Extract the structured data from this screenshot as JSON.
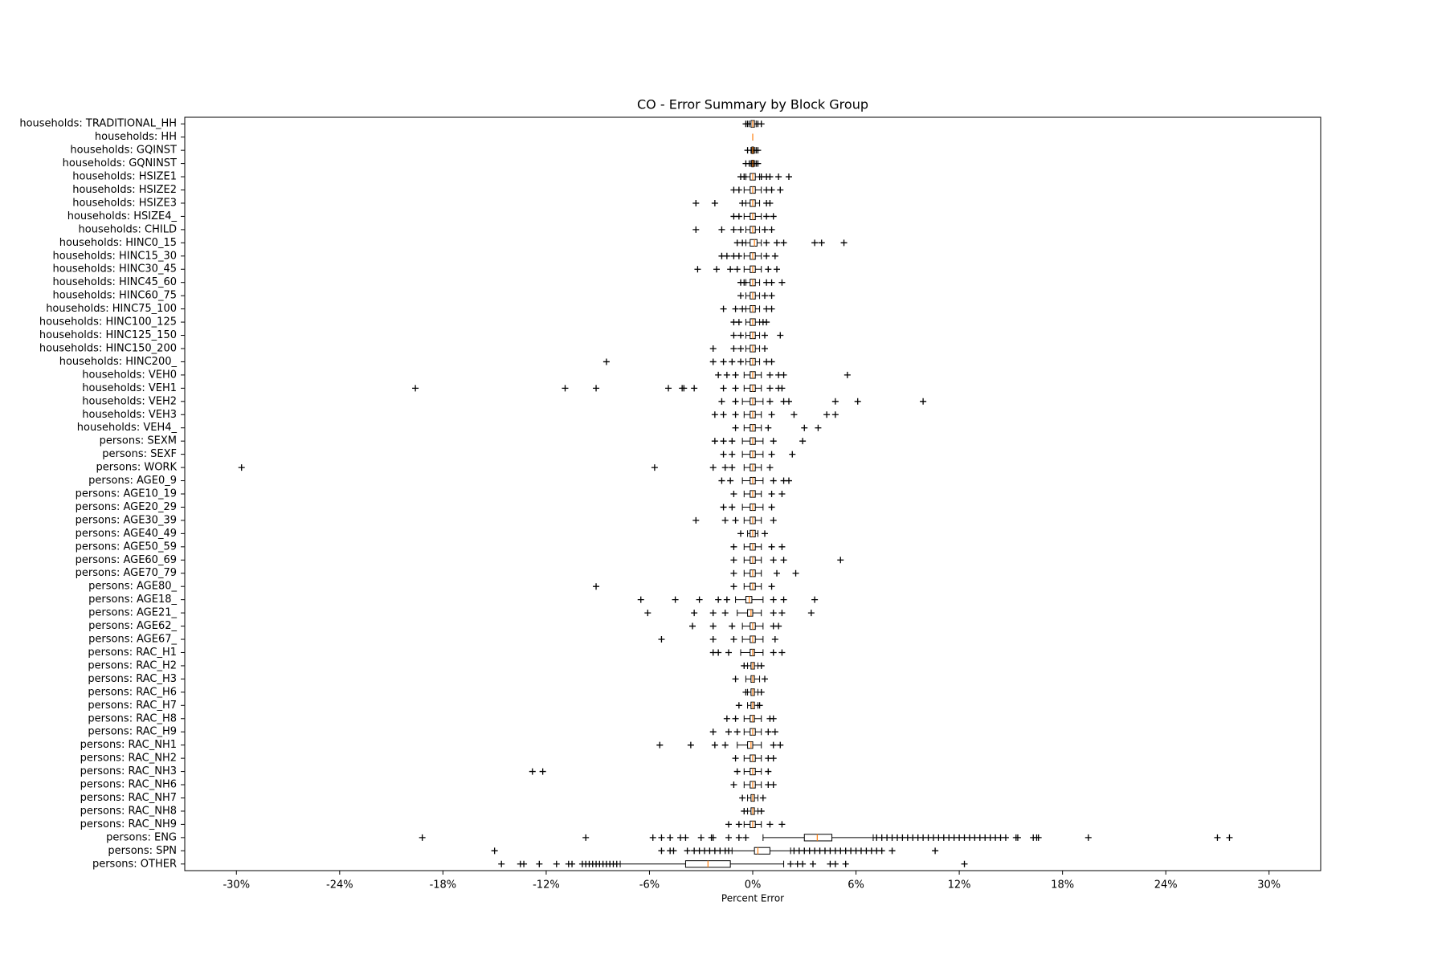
{
  "chart_data": {
    "type": "boxplot",
    "orientation": "horizontal",
    "title": "CO - Error Summary by Block Group",
    "x_label": "Percent Error",
    "xlim": [
      -33,
      33
    ],
    "xticks": [
      {
        "value": -30,
        "label": "-30%"
      },
      {
        "value": -24,
        "label": "-24%"
      },
      {
        "value": -18,
        "label": "-18%"
      },
      {
        "value": -12,
        "label": "-12%"
      },
      {
        "value": -6,
        "label": "-6%"
      },
      {
        "value": 0,
        "label": "0%"
      },
      {
        "value": 6,
        "label": "6%"
      },
      {
        "value": 12,
        "label": "12%"
      },
      {
        "value": 18,
        "label": "18%"
      },
      {
        "value": 24,
        "label": "24%"
      },
      {
        "value": 30,
        "label": "30%"
      }
    ],
    "box_color": "#000000",
    "median_color": "#ff7f0e",
    "flier_marker": "+",
    "categories": [
      "households: TRADITIONAL_HH",
      "households: HH",
      "households: GQINST",
      "households: GQNINST",
      "households: HSIZE1",
      "households: HSIZE2",
      "households: HSIZE3",
      "households: HSIZE4_",
      "households: CHILD",
      "households: HINC0_15",
      "households: HINC15_30",
      "households: HINC30_45",
      "households: HINC45_60",
      "households: HINC60_75",
      "households: HINC75_100",
      "households: HINC100_125",
      "households: HINC125_150",
      "households: HINC150_200",
      "households: HINC200_",
      "households: VEH0",
      "households: VEH1",
      "households: VEH2",
      "households: VEH3",
      "households: VEH4_",
      "persons: SEXM",
      "persons: SEXF",
      "persons: WORK",
      "persons: AGE0_9",
      "persons: AGE10_19",
      "persons: AGE20_29",
      "persons: AGE30_39",
      "persons: AGE40_49",
      "persons: AGE50_59",
      "persons: AGE60_69",
      "persons: AGE70_79",
      "persons: AGE80_",
      "persons: AGE18_",
      "persons: AGE21_",
      "persons: AGE62_",
      "persons: AGE67_",
      "persons: RAC_H1",
      "persons: RAC_H2",
      "persons: RAC_H3",
      "persons: RAC_H6",
      "persons: RAC_H7",
      "persons: RAC_H8",
      "persons: RAC_H9",
      "persons: RAC_NH1",
      "persons: RAC_NH2",
      "persons: RAC_NH3",
      "persons: RAC_NH6",
      "persons: RAC_NH7",
      "persons: RAC_NH8",
      "persons: RAC_NH9",
      "persons: ENG",
      "persons: SPN",
      "persons: OTHER"
    ],
    "boxes": [
      {
        "q1": -0.1,
        "median": 0,
        "q3": 0.1,
        "whislo": -0.2,
        "whishi": 0.2,
        "fliers": [
          -0.4,
          -0.3,
          0.3,
          0.5
        ]
      },
      {
        "q1": 0,
        "median": 0,
        "q3": 0,
        "whislo": 0,
        "whishi": 0,
        "fliers": []
      },
      {
        "q1": -0.05,
        "median": 0,
        "q3": 0.05,
        "whislo": -0.1,
        "whishi": 0.1,
        "fliers": [
          -0.3,
          0.2,
          0.3
        ]
      },
      {
        "q1": -0.05,
        "median": 0,
        "q3": 0.05,
        "whislo": -0.1,
        "whishi": 0.1,
        "fliers": [
          -0.4,
          -0.2,
          0.2,
          0.3
        ]
      },
      {
        "q1": -0.15,
        "median": 0,
        "q3": 0.15,
        "whislo": -0.4,
        "whishi": 0.4,
        "fliers": [
          -0.7,
          -0.5,
          0.5,
          0.8,
          1.0,
          1.5,
          2.1
        ]
      },
      {
        "q1": -0.15,
        "median": 0,
        "q3": 0.15,
        "whislo": -0.5,
        "whishi": 0.5,
        "fliers": [
          -1.1,
          -0.8,
          0.8,
          1.1,
          1.6
        ]
      },
      {
        "q1": -0.15,
        "median": 0,
        "q3": 0.15,
        "whislo": -0.4,
        "whishi": 0.4,
        "fliers": [
          -3.3,
          -2.2,
          -0.6,
          0.8,
          1.0
        ]
      },
      {
        "q1": -0.15,
        "median": 0,
        "q3": 0.15,
        "whislo": -0.5,
        "whishi": 0.5,
        "fliers": [
          -1.1,
          -0.8,
          0.8,
          1.2
        ]
      },
      {
        "q1": -0.15,
        "median": 0,
        "q3": 0.15,
        "whislo": -0.4,
        "whishi": 0.4,
        "fliers": [
          -3.3,
          -1.8,
          -1.1,
          -0.7,
          0.7,
          1.1
        ]
      },
      {
        "q1": -0.15,
        "median": 0.1,
        "q3": 0.25,
        "whislo": -0.4,
        "whishi": 0.5,
        "fliers": [
          -0.9,
          -0.6,
          0.8,
          1.4,
          1.8,
          3.6,
          4.0,
          5.3
        ]
      },
      {
        "q1": -0.15,
        "median": 0,
        "q3": 0.15,
        "whislo": -0.5,
        "whishi": 0.5,
        "fliers": [
          -1.8,
          -1.5,
          -1.1,
          -0.8,
          0.8,
          1.3
        ]
      },
      {
        "q1": -0.15,
        "median": 0,
        "q3": 0.15,
        "whislo": -0.5,
        "whishi": 0.5,
        "fliers": [
          -3.2,
          -2.1,
          -1.3,
          -0.9,
          0.9,
          1.4
        ]
      },
      {
        "q1": -0.15,
        "median": 0,
        "q3": 0.15,
        "whislo": -0.4,
        "whishi": 0.4,
        "fliers": [
          -0.7,
          -0.5,
          0.8,
          1.1,
          1.7
        ]
      },
      {
        "q1": -0.15,
        "median": 0,
        "q3": 0.15,
        "whislo": -0.4,
        "whishi": 0.4,
        "fliers": [
          -0.7,
          0.7,
          1.1
        ]
      },
      {
        "q1": -0.15,
        "median": 0,
        "q3": 0.15,
        "whislo": -0.4,
        "whishi": 0.4,
        "fliers": [
          -1.7,
          -1.0,
          -0.6,
          0.8,
          1.1
        ]
      },
      {
        "q1": -0.15,
        "median": 0,
        "q3": 0.15,
        "whislo": -0.4,
        "whishi": 0.4,
        "fliers": [
          -1.1,
          -0.8,
          0.6,
          0.8
        ]
      },
      {
        "q1": -0.15,
        "median": 0,
        "q3": 0.15,
        "whislo": -0.4,
        "whishi": 0.4,
        "fliers": [
          -1.1,
          -0.7,
          0.7,
          1.6
        ]
      },
      {
        "q1": -0.15,
        "median": 0,
        "q3": 0.15,
        "whislo": -0.4,
        "whishi": 0.4,
        "fliers": [
          -2.3,
          -1.1,
          -0.7,
          0.7
        ]
      },
      {
        "q1": -0.15,
        "median": 0,
        "q3": 0.15,
        "whislo": -0.4,
        "whishi": 0.4,
        "fliers": [
          -8.5,
          -2.3,
          -1.7,
          -1.2,
          -0.7,
          0.8,
          1.1
        ]
      },
      {
        "q1": -0.15,
        "median": 0,
        "q3": 0.15,
        "whislo": -0.5,
        "whishi": 0.5,
        "fliers": [
          -2.0,
          -1.5,
          -1.0,
          1.0,
          1.5,
          1.8,
          5.5
        ]
      },
      {
        "q1": -0.15,
        "median": 0,
        "q3": 0.15,
        "whislo": -0.5,
        "whishi": 0.5,
        "fliers": [
          -19.6,
          -10.9,
          -9.1,
          -4.9,
          -4.1,
          -4.0,
          -3.4,
          -1.7,
          -1.0,
          1.0,
          1.5,
          1.7
        ]
      },
      {
        "q1": -0.15,
        "median": 0,
        "q3": 0.15,
        "whislo": -0.6,
        "whishi": 0.6,
        "fliers": [
          -1.8,
          -1.0,
          1.0,
          1.8,
          2.1,
          4.8,
          6.1,
          9.9
        ]
      },
      {
        "q1": -0.15,
        "median": 0,
        "q3": 0.15,
        "whislo": -0.5,
        "whishi": 0.5,
        "fliers": [
          -2.2,
          -1.7,
          -1.0,
          1.1,
          2.4,
          4.3,
          4.8
        ]
      },
      {
        "q1": -0.15,
        "median": 0,
        "q3": 0.15,
        "whislo": -0.5,
        "whishi": 0.5,
        "fliers": [
          -1.0,
          0.9,
          3.0,
          3.8
        ]
      },
      {
        "q1": -0.15,
        "median": 0,
        "q3": 0.15,
        "whislo": -0.6,
        "whishi": 0.6,
        "fliers": [
          -2.2,
          -1.7,
          -1.2,
          1.2,
          2.9
        ]
      },
      {
        "q1": -0.15,
        "median": 0,
        "q3": 0.15,
        "whislo": -0.6,
        "whishi": 0.6,
        "fliers": [
          -1.7,
          -1.2,
          1.1,
          2.3
        ]
      },
      {
        "q1": -0.15,
        "median": 0,
        "q3": 0.15,
        "whislo": -0.5,
        "whishi": 0.5,
        "fliers": [
          -29.7,
          -5.7,
          -2.3,
          -1.6,
          -1.2,
          1.0
        ]
      },
      {
        "q1": -0.15,
        "median": 0,
        "q3": 0.15,
        "whislo": -0.6,
        "whishi": 0.6,
        "fliers": [
          -1.8,
          -1.3,
          1.2,
          1.8,
          2.1
        ]
      },
      {
        "q1": -0.15,
        "median": 0,
        "q3": 0.15,
        "whislo": -0.5,
        "whishi": 0.5,
        "fliers": [
          -1.1,
          1.1,
          1.7
        ]
      },
      {
        "q1": -0.15,
        "median": 0,
        "q3": 0.15,
        "whislo": -0.6,
        "whishi": 0.6,
        "fliers": [
          -1.7,
          -1.2,
          1.1
        ]
      },
      {
        "q1": -0.15,
        "median": 0,
        "q3": 0.15,
        "whislo": -0.5,
        "whishi": 0.5,
        "fliers": [
          -3.3,
          -1.6,
          -1.0,
          1.2
        ]
      },
      {
        "q1": -0.15,
        "median": 0,
        "q3": 0.15,
        "whislo": -0.3,
        "whishi": 0.3,
        "fliers": [
          -0.7,
          0.7
        ]
      },
      {
        "q1": -0.15,
        "median": 0,
        "q3": 0.15,
        "whislo": -0.5,
        "whishi": 0.5,
        "fliers": [
          -1.1,
          1.1,
          1.7
        ]
      },
      {
        "q1": -0.15,
        "median": 0,
        "q3": 0.15,
        "whislo": -0.5,
        "whishi": 0.5,
        "fliers": [
          -1.1,
          1.2,
          1.8,
          5.1
        ]
      },
      {
        "q1": -0.15,
        "median": 0,
        "q3": 0.15,
        "whislo": -0.5,
        "whishi": 0.5,
        "fliers": [
          -1.1,
          1.4,
          2.5
        ]
      },
      {
        "q1": -0.15,
        "median": 0,
        "q3": 0.15,
        "whislo": -0.5,
        "whishi": 0.5,
        "fliers": [
          -9.1,
          -1.1,
          1.1
        ]
      },
      {
        "q1": -0.4,
        "median": -0.2,
        "q3": -0.05,
        "whislo": -1.0,
        "whishi": 0.6,
        "fliers": [
          -6.5,
          -4.5,
          -3.1,
          -2.0,
          -1.5,
          1.2,
          1.8,
          3.6
        ]
      },
      {
        "q1": -0.3,
        "median": -0.1,
        "q3": 0,
        "whislo": -0.9,
        "whishi": 0.5,
        "fliers": [
          -6.1,
          -3.4,
          -2.3,
          -1.6,
          1.2,
          1.7,
          3.4
        ]
      },
      {
        "q1": -0.15,
        "median": 0,
        "q3": 0.15,
        "whislo": -0.6,
        "whishi": 0.6,
        "fliers": [
          -3.5,
          -2.3,
          -1.2,
          1.2,
          1.5
        ]
      },
      {
        "q1": -0.15,
        "median": 0,
        "q3": 0.15,
        "whislo": -0.6,
        "whishi": 0.6,
        "fliers": [
          -5.3,
          -2.3,
          -1.1,
          1.3
        ]
      },
      {
        "q1": -0.15,
        "median": 0,
        "q3": 0.1,
        "whislo": -0.7,
        "whishi": 0.6,
        "fliers": [
          -2.3,
          -2.0,
          -1.4,
          1.2,
          1.7
        ]
      },
      {
        "q1": -0.1,
        "median": 0,
        "q3": 0.1,
        "whislo": -0.3,
        "whishi": 0.3,
        "fliers": [
          -0.5,
          0.5
        ]
      },
      {
        "q1": -0.1,
        "median": 0,
        "q3": 0.1,
        "whislo": -0.4,
        "whishi": 0.4,
        "fliers": [
          -1.0,
          0.7
        ]
      },
      {
        "q1": -0.1,
        "median": 0,
        "q3": 0.1,
        "whislo": -0.3,
        "whishi": 0.3,
        "fliers": [
          -0.4,
          0.5
        ]
      },
      {
        "q1": -0.1,
        "median": 0,
        "q3": 0.1,
        "whislo": -0.3,
        "whishi": 0.3,
        "fliers": [
          -0.8,
          0.4
        ]
      },
      {
        "q1": -0.15,
        "median": 0,
        "q3": 0.1,
        "whislo": -0.5,
        "whishi": 0.5,
        "fliers": [
          -1.5,
          -1.0,
          1.0,
          1.2
        ]
      },
      {
        "q1": -0.15,
        "median": 0,
        "q3": 0.15,
        "whislo": -0.5,
        "whishi": 0.5,
        "fliers": [
          -2.3,
          -1.4,
          -0.9,
          0.9,
          1.3
        ]
      },
      {
        "q1": -0.3,
        "median": -0.1,
        "q3": 0,
        "whislo": -0.9,
        "whishi": 0.5,
        "fliers": [
          -5.4,
          -3.6,
          -2.2,
          -1.6,
          1.2,
          1.6
        ]
      },
      {
        "q1": -0.15,
        "median": 0,
        "q3": 0.15,
        "whislo": -0.5,
        "whishi": 0.5,
        "fliers": [
          -1.0,
          0.9,
          1.2
        ]
      },
      {
        "q1": -0.15,
        "median": 0,
        "q3": 0.15,
        "whislo": -0.5,
        "whishi": 0.5,
        "fliers": [
          -12.8,
          -12.2,
          -0.9,
          0.9
        ]
      },
      {
        "q1": -0.15,
        "median": 0,
        "q3": 0.15,
        "whislo": -0.5,
        "whishi": 0.5,
        "fliers": [
          -1.1,
          0.9,
          1.2
        ]
      },
      {
        "q1": -0.1,
        "median": 0,
        "q3": 0.1,
        "whislo": -0.3,
        "whishi": 0.3,
        "fliers": [
          -0.6,
          0.6
        ]
      },
      {
        "q1": -0.1,
        "median": 0,
        "q3": 0.1,
        "whislo": -0.3,
        "whishi": 0.3,
        "fliers": [
          -0.5,
          0.5
        ]
      },
      {
        "q1": -0.15,
        "median": 0,
        "q3": 0.15,
        "whislo": -0.5,
        "whishi": 0.5,
        "fliers": [
          -1.4,
          -0.8,
          1.0,
          1.7
        ]
      },
      {
        "q1": 3.0,
        "median": 3.75,
        "q3": 4.6,
        "whislo": 0.6,
        "whishi": 7.0,
        "fliers": [
          -19.2,
          -9.7,
          -5.8,
          -5.3,
          -4.8,
          -4.2,
          -3.9,
          -3.0,
          -2.4,
          -2.3,
          -1.4,
          -0.8,
          -0.4,
          7.2,
          7.5,
          7.8,
          8.1,
          8.4,
          8.7,
          9.0,
          9.3,
          9.6,
          9.9,
          10.2,
          10.5,
          10.8,
          11.1,
          11.4,
          11.7,
          12.0,
          12.3,
          12.6,
          12.9,
          13.2,
          13.5,
          13.8,
          14.1,
          14.4,
          14.7,
          15.3,
          15.4,
          16.3,
          16.5,
          16.6,
          19.5,
          27.0,
          27.7
        ]
      },
      {
        "q1": 0.1,
        "median": 0.3,
        "q3": 1.0,
        "whislo": -1.2,
        "whishi": 2.2,
        "fliers": [
          -15.0,
          -5.3,
          -4.8,
          -4.6,
          -3.8,
          -3.4,
          -3.1,
          -2.8,
          -2.5,
          -2.2,
          -1.9,
          -1.6,
          -1.4,
          2.4,
          2.7,
          3.0,
          3.3,
          3.6,
          3.9,
          4.2,
          4.5,
          4.8,
          5.1,
          5.4,
          5.7,
          6.0,
          6.3,
          6.6,
          6.9,
          7.2,
          7.5,
          8.1,
          10.6
        ]
      },
      {
        "q1": -3.9,
        "median": -2.6,
        "q3": -1.3,
        "whislo": -7.7,
        "whishi": 1.8,
        "fliers": [
          -14.6,
          -13.5,
          -13.3,
          -12.4,
          -11.4,
          -10.7,
          -10.5,
          -9.9,
          -9.7,
          -9.5,
          -9.3,
          -9.1,
          -8.9,
          -8.7,
          -8.5,
          -8.3,
          -8.1,
          -7.9,
          2.2,
          2.6,
          2.9,
          3.5,
          4.5,
          4.8,
          5.4,
          12.3
        ]
      }
    ]
  }
}
